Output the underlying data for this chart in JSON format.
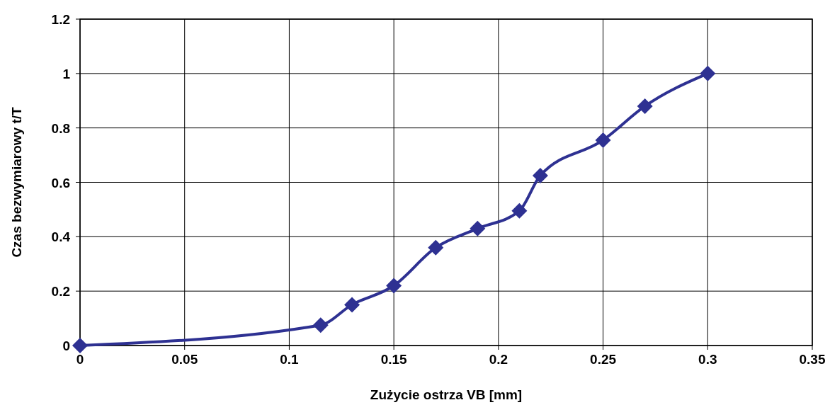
{
  "chart_data": {
    "type": "line",
    "xlabel": "Zużycie ostrza VB [mm]",
    "ylabel": "Czas bezwymiarowy t/T",
    "x": [
      0,
      0.115,
      0.13,
      0.15,
      0.17,
      0.19,
      0.21,
      0.22,
      0.25,
      0.27,
      0.3
    ],
    "series": [
      {
        "color": "#2e3192",
        "values": [
          0,
          0.075,
          0.15,
          0.22,
          0.36,
          0.43,
          0.495,
          0.625,
          0.755,
          0.88,
          1.0
        ]
      }
    ],
    "xlim": [
      0,
      0.35
    ],
    "xticks": [
      0,
      0.05,
      0.1,
      0.15,
      0.2,
      0.25,
      0.3,
      0.35
    ],
    "ylim": [
      0,
      1.2
    ],
    "yticks": [
      0,
      0.2,
      0.4,
      0.6,
      0.8,
      1,
      1.2
    ],
    "grid": true,
    "marker": "diamond",
    "line_style": "solid"
  }
}
